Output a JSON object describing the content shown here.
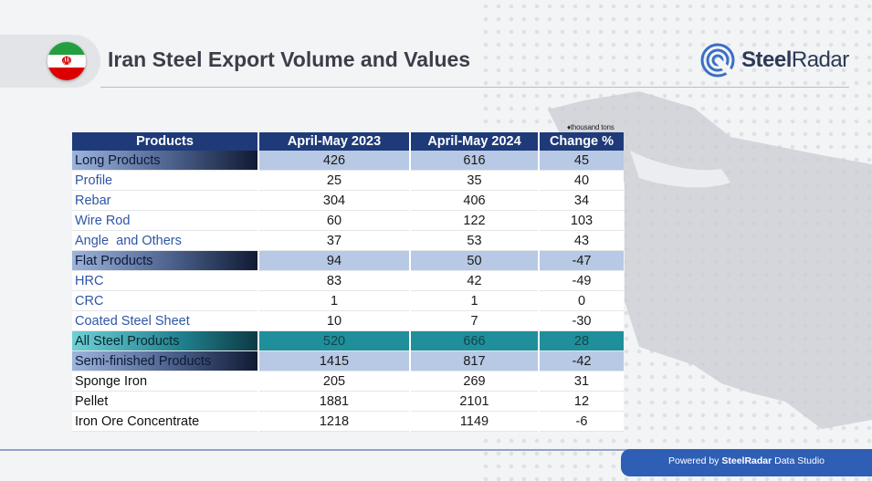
{
  "header": {
    "title": "Iran Steel Export Volume and Values",
    "brand_name_bold": "Steel",
    "brand_name_light": "Radar"
  },
  "unit_note": "thousand tons",
  "table": {
    "columns": [
      "Products",
      "April-May 2023",
      "April-May 2024",
      "Change %"
    ],
    "rows": [
      {
        "name": "Long Products",
        "y2023": "426",
        "y2024": "616",
        "change": "45"
      },
      {
        "name": "Profile",
        "y2023": "25",
        "y2024": "35",
        "change": "40"
      },
      {
        "name": "Rebar",
        "y2023": "304",
        "y2024": "406",
        "change": "34"
      },
      {
        "name": "Wire Rod",
        "y2023": "60",
        "y2024": "122",
        "change": "103"
      },
      {
        "name": "Angle  and Others",
        "y2023": "37",
        "y2024": "53",
        "change": "43"
      },
      {
        "name": "Flat Products",
        "y2023": "94",
        "y2024": "50",
        "change": "-47"
      },
      {
        "name": "HRC",
        "y2023": "83",
        "y2024": "42",
        "change": "-49"
      },
      {
        "name": "CRC",
        "y2023": "1",
        "y2024": "1",
        "change": "0"
      },
      {
        "name": "Coated Steel Sheet",
        "y2023": "10",
        "y2024": "7",
        "change": "-30"
      },
      {
        "name": "All Steel Products",
        "y2023": "520",
        "y2024": "666",
        "change": "28"
      },
      {
        "name": "Semi-finished Products",
        "y2023": "1415",
        "y2024": "817",
        "change": "-42"
      },
      {
        "name": "Sponge Iron",
        "y2023": "205",
        "y2024": "269",
        "change": "31"
      },
      {
        "name": "Pellet",
        "y2023": "1881",
        "y2024": "2101",
        "change": "12"
      },
      {
        "name": "Iron Ore Concentrate",
        "y2023": "1218",
        "y2024": "1149",
        "change": "-6"
      }
    ]
  },
  "footer": {
    "prefix": "Powered by ",
    "brand": "SteelRadar",
    "suffix": " Data Studio"
  },
  "colors": {
    "header_bg": "#1f3a78",
    "category_bg": "#b7c9e4",
    "total_bg": "#1e8f9b",
    "footer_bg": "#2f5fb5"
  }
}
